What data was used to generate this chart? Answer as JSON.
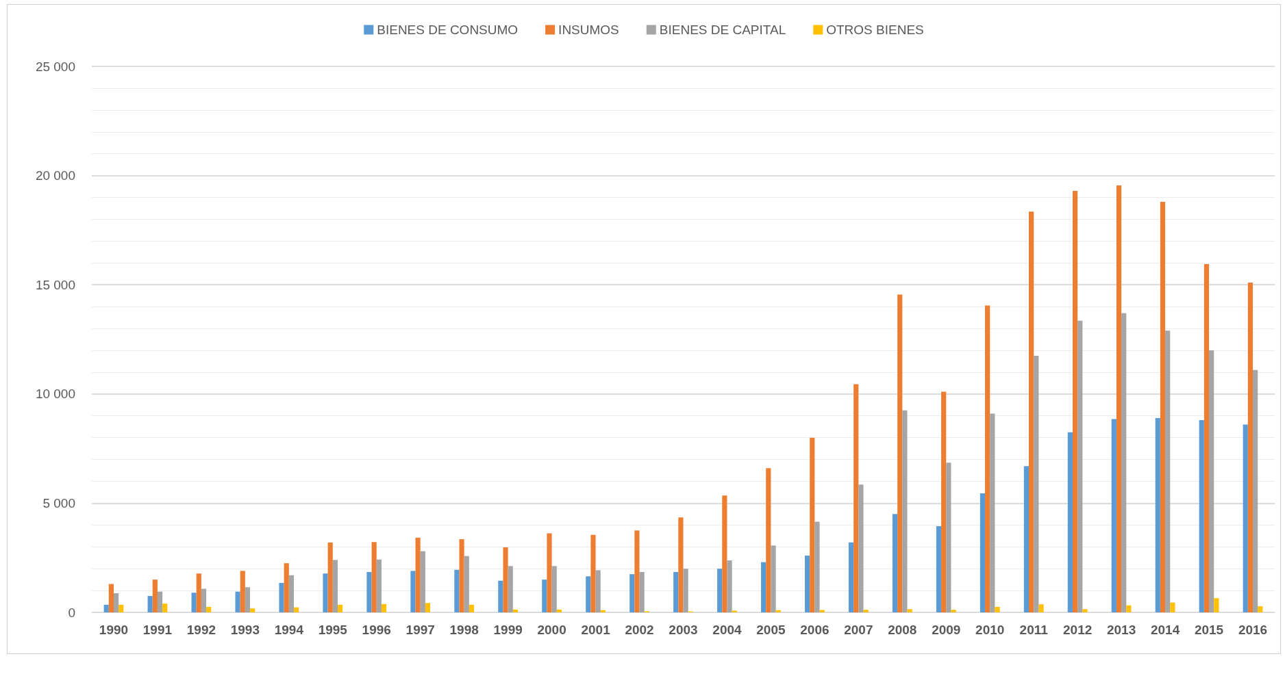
{
  "chart_data": {
    "type": "bar",
    "categories": [
      "1990",
      "1991",
      "1992",
      "1993",
      "1994",
      "1995",
      "1996",
      "1997",
      "1998",
      "1999",
      "2000",
      "2001",
      "2002",
      "2003",
      "2004",
      "2005",
      "2006",
      "2007",
      "2008",
      "2009",
      "2010",
      "2011",
      "2012",
      "2013",
      "2014",
      "2015",
      "2016"
    ],
    "series": [
      {
        "name": "BIENES DE CONSUMO",
        "color": "#5b9bd5",
        "values": [
          350,
          750,
          900,
          950,
          1350,
          1780,
          1850,
          1900,
          1950,
          1450,
          1500,
          1650,
          1750,
          1850,
          2000,
          2300,
          2600,
          3200,
          4500,
          3950,
          5450,
          6700,
          8250,
          8850,
          8900,
          8800,
          8600
        ]
      },
      {
        "name": "INSUMOS",
        "color": "#ed7d31",
        "values": [
          1300,
          1500,
          1780,
          1900,
          2250,
          3200,
          3220,
          3420,
          3350,
          2980,
          3620,
          3550,
          3750,
          4350,
          5350,
          6600,
          8000,
          10450,
          14550,
          10100,
          14050,
          18350,
          19300,
          19550,
          18800,
          15950,
          15100
        ]
      },
      {
        "name": "BIENES DE CAPITAL",
        "color": "#a5a5a5",
        "values": [
          880,
          950,
          1080,
          1150,
          1700,
          2400,
          2420,
          2800,
          2580,
          2120,
          2120,
          1930,
          1850,
          2000,
          2380,
          3060,
          4150,
          5850,
          9250,
          6850,
          9100,
          11750,
          13350,
          13700,
          12900,
          12000,
          11100
        ]
      },
      {
        "name": "OTROS BIENES",
        "color": "#ffc000",
        "values": [
          350,
          400,
          250,
          180,
          230,
          350,
          380,
          430,
          350,
          130,
          130,
          100,
          50,
          40,
          80,
          100,
          110,
          120,
          150,
          120,
          250,
          370,
          150,
          320,
          450,
          650,
          280
        ]
      }
    ],
    "ylim": [
      0,
      25000
    ],
    "yticks": [
      {
        "value": 0,
        "label": "0"
      },
      {
        "value": 5000,
        "label": "5 000"
      },
      {
        "value": 10000,
        "label": "10 000"
      },
      {
        "value": 15000,
        "label": "15 000"
      },
      {
        "value": 20000,
        "label": "20 000"
      },
      {
        "value": 25000,
        "label": "25 000"
      }
    ],
    "grid": "y",
    "legend": "top"
  }
}
